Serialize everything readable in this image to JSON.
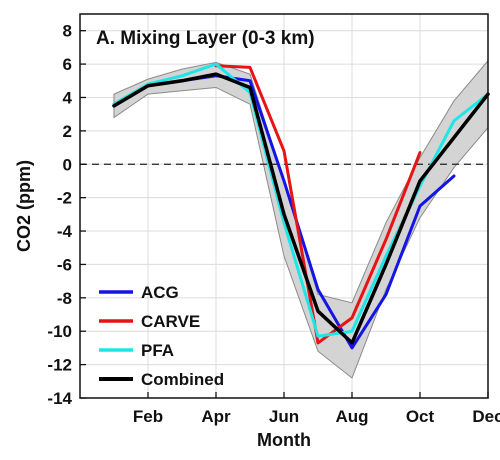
{
  "chart_data": {
    "type": "line",
    "title": "A. Mixing Layer (0-3 km)",
    "xlabel": "Month",
    "ylabel": "CO2 (ppm)",
    "xlim": [
      0,
      12
    ],
    "ylim": [
      -14,
      9
    ],
    "x_ticks": [
      {
        "x": 2,
        "label": "Feb"
      },
      {
        "x": 4,
        "label": "Apr"
      },
      {
        "x": 6,
        "label": "Jun"
      },
      {
        "x": 8,
        "label": "Aug"
      },
      {
        "x": 10,
        "label": "Oct"
      },
      {
        "x": 12,
        "label": "Dec"
      }
    ],
    "y_ticks": [
      8,
      6,
      4,
      2,
      0,
      -2,
      -4,
      -6,
      -8,
      -10,
      -12,
      -14
    ],
    "grid": true,
    "reference_line": {
      "y": 0,
      "style": "dashed"
    },
    "legend_position": "bottom-left",
    "band": {
      "x": [
        1,
        2,
        3,
        4,
        5,
        6,
        7,
        8,
        9,
        10,
        11,
        12
      ],
      "lower": [
        2.8,
        4.2,
        4.4,
        4.6,
        3.6,
        -5.5,
        -11.2,
        -12.8,
        -7.5,
        -3.2,
        -0.2,
        2.2
      ],
      "upper": [
        4.2,
        5.1,
        5.7,
        6.1,
        5.4,
        -1.0,
        -7.8,
        -8.3,
        -3.5,
        0.4,
        3.8,
        6.2
      ]
    },
    "series": [
      {
        "name": "ACG",
        "color": "#1414e6",
        "x": [
          1,
          2,
          3,
          4,
          5,
          6,
          7,
          8,
          9,
          10,
          11
        ],
        "y": [
          3.6,
          4.7,
          5.0,
          5.3,
          5.0,
          -1.0,
          -7.5,
          -11.0,
          -7.8,
          -2.5,
          -0.7
        ]
      },
      {
        "name": "CARVE",
        "color": "#e61414",
        "x": [
          4,
          5,
          6,
          7,
          8,
          9,
          10
        ],
        "y": [
          5.9,
          5.8,
          0.8,
          -10.7,
          -9.2,
          -4.5,
          0.7
        ]
      },
      {
        "name": "PFA",
        "color": "#1ee6e6",
        "x": [
          1,
          2,
          3,
          4,
          5,
          6,
          7,
          8,
          9,
          10,
          11,
          12
        ],
        "y": [
          3.6,
          4.8,
          5.3,
          6.0,
          4.3,
          -3.5,
          -10.3,
          -10.0,
          -5.5,
          -1.3,
          2.6,
          4.2
        ]
      },
      {
        "name": "Combined",
        "color": "#000000",
        "x": [
          1,
          2,
          3,
          4,
          5,
          6,
          7,
          8,
          9,
          10,
          11,
          12
        ],
        "y": [
          3.5,
          4.7,
          5.0,
          5.4,
          4.6,
          -3.0,
          -8.8,
          -10.7,
          -6.0,
          -1.0,
          1.6,
          4.2
        ]
      }
    ]
  }
}
